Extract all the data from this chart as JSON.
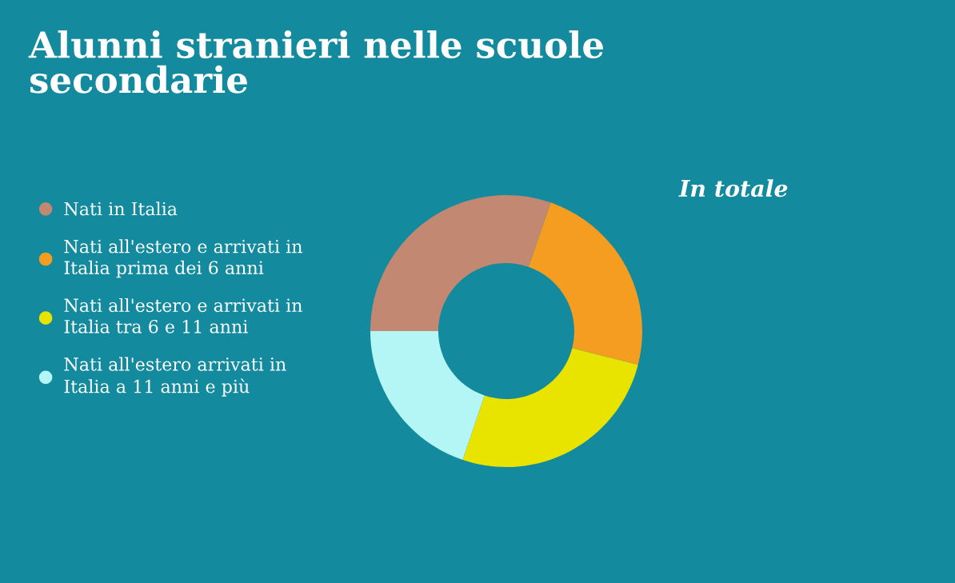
{
  "chart_data": {
    "type": "donut",
    "title": "Alunni stranieri nelle scuole\nsecondarie",
    "subtitle": "In totale",
    "categories": [
      "Nati in Italia",
      "Nati all'estero e arrivati in\nItalia prima dei 6 anni",
      "Nati all'estero e arrivati in\nItalia tra 6 e 11 anni",
      "Nati all'estero arrivati in\nItalia a 11 anni e più"
    ],
    "values": [
      30.3,
      23.7,
      26.2,
      19.8
    ],
    "colors": [
      "#c38872",
      "#f49d20",
      "#e8e400",
      "#b3f6f5"
    ],
    "legend": "left"
  }
}
